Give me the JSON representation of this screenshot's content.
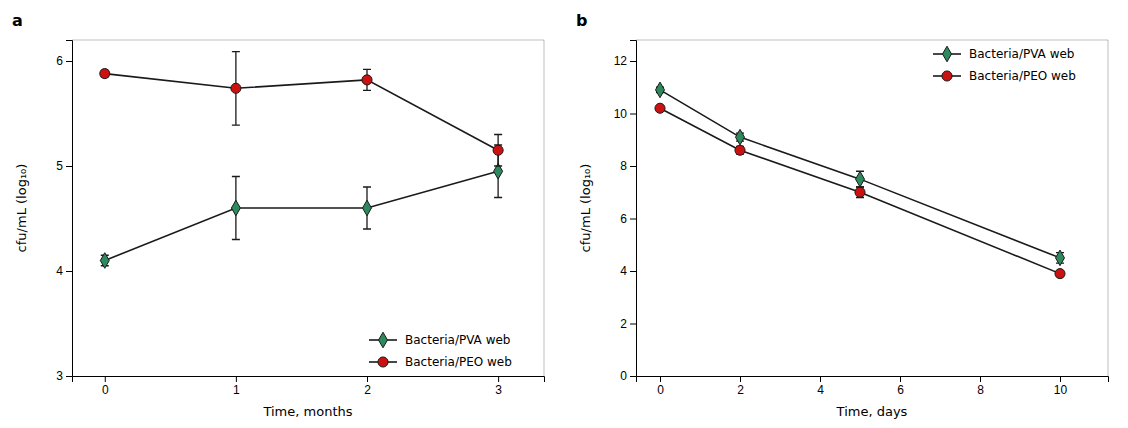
{
  "chart_data": [
    {
      "type": "line",
      "title": "a",
      "xlabel": "Time, months",
      "ylabel": "cfu/mL (log₁₀)",
      "x": [
        0,
        1,
        2,
        3
      ],
      "xlim": [
        -0.25,
        3.35
      ],
      "ylim": [
        3.0,
        6.2
      ],
      "xticks": [
        0,
        1,
        2,
        3
      ],
      "yticks": [
        3,
        4,
        5,
        6
      ],
      "grid": false,
      "legend": "lower right",
      "color": "#1a1a1a",
      "series": [
        {
          "name": "Bacteria/PVA web",
          "color": "#2d8a5e",
          "marker": "diamond",
          "values": [
            4.1,
            4.6,
            4.6,
            4.95
          ],
          "errors": [
            0.05,
            0.3,
            0.2,
            0.25
          ]
        },
        {
          "name": "Bacteria/PEO web",
          "color": "#cc1111",
          "marker": "circle",
          "values": [
            5.88,
            5.74,
            5.82,
            5.15
          ],
          "errors": [
            0.03,
            0.35,
            0.1,
            0.15
          ]
        }
      ]
    },
    {
      "type": "line",
      "title": "b",
      "xlabel": "Time, days",
      "ylabel": "cfu/mL (log₁₀)",
      "x": [
        0,
        2,
        5,
        10
      ],
      "xlim": [
        -0.6,
        11.2
      ],
      "ylim": [
        0,
        12.8
      ],
      "xticks": [
        0,
        2,
        4,
        6,
        8,
        10
      ],
      "yticks": [
        0,
        2,
        4,
        6,
        8,
        10,
        12
      ],
      "grid": false,
      "legend": "upper right",
      "color": "#1a1a1a",
      "series": [
        {
          "name": "Bacteria/PVA web",
          "color": "#2d8a5e",
          "marker": "diamond",
          "values": [
            10.9,
            9.1,
            7.5,
            4.5
          ],
          "errors": [
            0.1,
            0.15,
            0.3,
            0.2
          ]
        },
        {
          "name": "Bacteria/PEO web",
          "color": "#cc1111",
          "marker": "circle",
          "values": [
            10.2,
            8.6,
            7.0,
            3.9
          ],
          "errors": [
            0.1,
            0.15,
            0.2,
            0.1
          ]
        }
      ]
    }
  ]
}
